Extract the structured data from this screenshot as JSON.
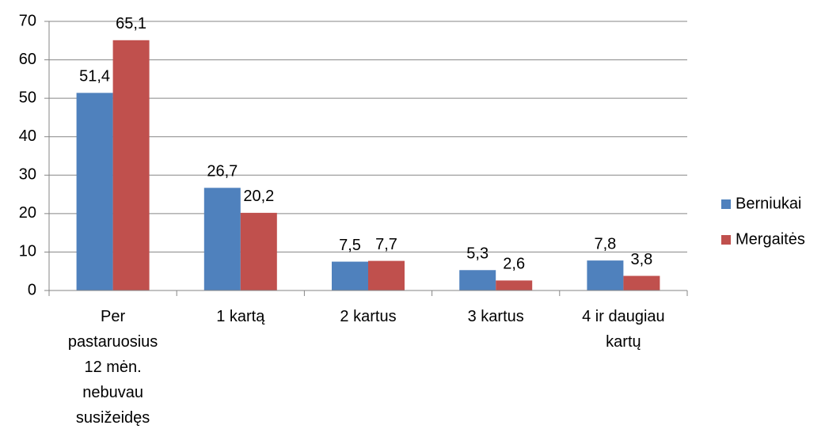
{
  "chart_data": {
    "type": "bar",
    "categories": [
      "Per pastaruosius 12 mėn. nebuvau susižeidęs",
      "1 kartą",
      "2 kartus",
      "3 kartus",
      "4 ir daugiau kartų"
    ],
    "series": [
      {
        "name": "Berniukai",
        "color": "#4f81bd",
        "values": [
          51.4,
          26.7,
          7.5,
          5.3,
          7.8
        ],
        "value_labels": [
          "51,4",
          "26,7",
          "7,5",
          "5,3",
          "7,8"
        ]
      },
      {
        "name": "Mergaitės",
        "color": "#c0504d",
        "values": [
          65.1,
          20.2,
          7.7,
          2.6,
          3.8
        ],
        "value_labels": [
          "65,1",
          "20,2",
          "7,7",
          "2,6",
          "3,8"
        ]
      }
    ],
    "ylim": [
      0,
      70
    ],
    "yticks": [
      0,
      10,
      20,
      30,
      40,
      50,
      60,
      70
    ],
    "grid": true,
    "legend": "right"
  }
}
